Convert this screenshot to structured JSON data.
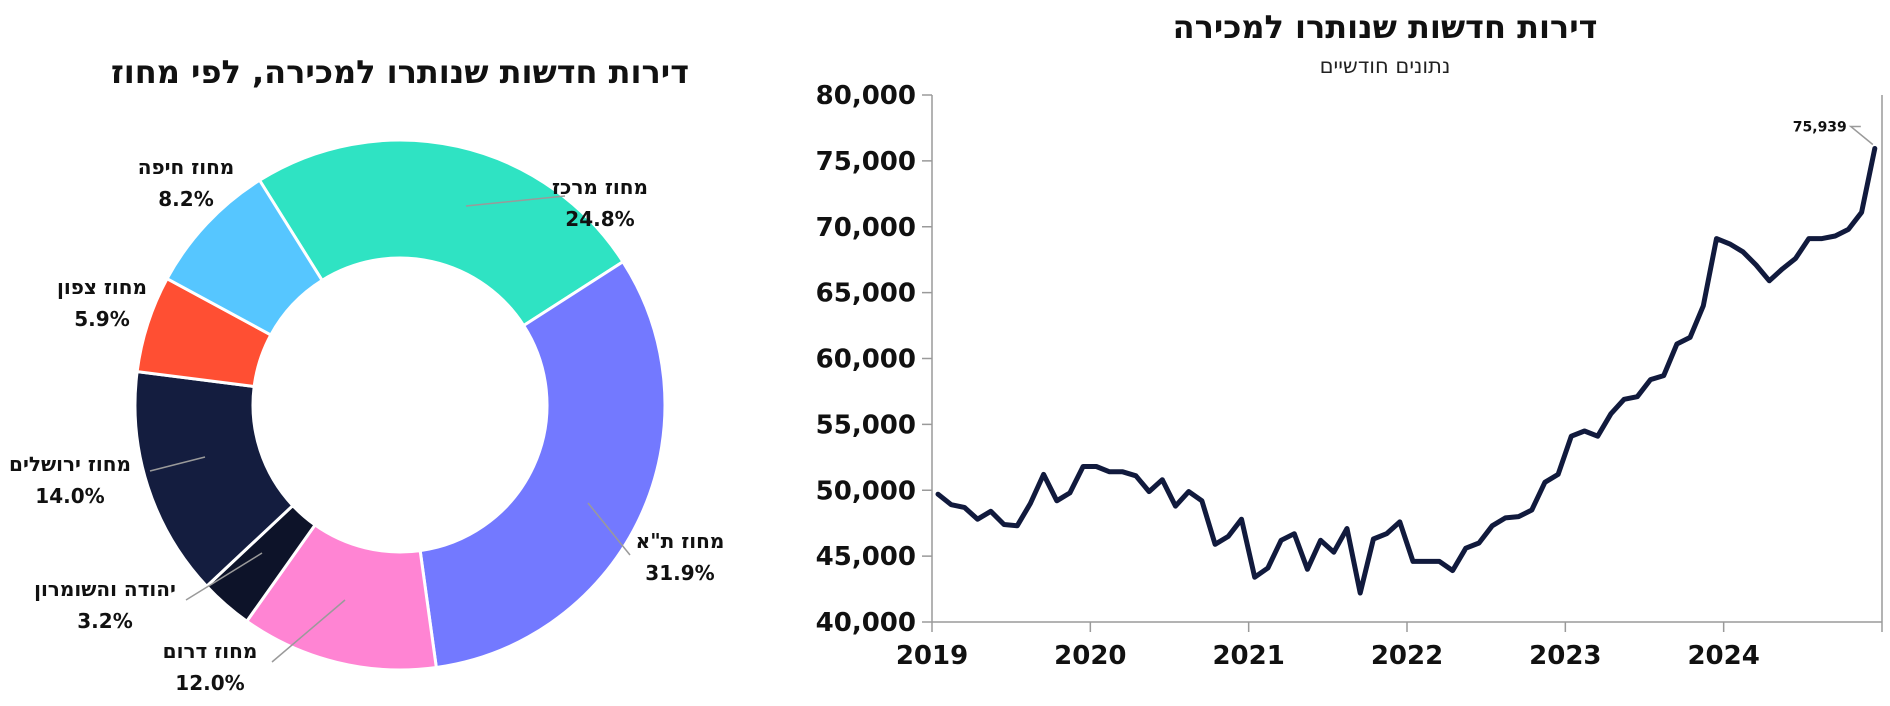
{
  "chart_data": [
    {
      "type": "pie",
      "title": "דירות חדשות שנותרו למכירה, לפי מחוז",
      "slices": [
        {
          "name": "מחוז מרכז",
          "value": 24.8,
          "label": "24.8%",
          "color": "#2fe3c3"
        },
        {
          "name": "מחוז ת\"א",
          "value": 31.9,
          "label": "31.9%",
          "color": "#7379ff"
        },
        {
          "name": "מחוז דרום",
          "value": 12.0,
          "label": "12.0%",
          "color": "#ff84d3"
        },
        {
          "name": "יהודה והשומרון",
          "value": 3.2,
          "label": "3.2%",
          "color": "#0d1329"
        },
        {
          "name": "מחוז ירושלים",
          "value": 14.0,
          "label": "14.0%",
          "color": "#141d3f"
        },
        {
          "name": "מחוז צפון",
          "value": 5.9,
          "label": "5.9%",
          "color": "#ff4f33"
        },
        {
          "name": "מחוז חיפה",
          "value": 8.2,
          "label": "8.2%",
          "color": "#56c6ff"
        }
      ]
    },
    {
      "type": "line",
      "title": "דירות חדשות שנותרו למכירה",
      "subtitle": "נתונים חודשיים",
      "x_start": "2019-01",
      "x_end": "2024-12",
      "x_ticks": [
        "2019",
        "2020",
        "2021",
        "2022",
        "2023",
        "2024"
      ],
      "ylim": [
        40000,
        80000
      ],
      "y_ticks": [
        "40,000",
        "45,000",
        "50,000",
        "55,000",
        "60,000",
        "65,000",
        "70,000",
        "75,000",
        "80,000"
      ],
      "line_color": "#111a3d",
      "annotation": {
        "text": "75,939",
        "value": 75939
      },
      "series": [
        {
          "values": [
            49700,
            48900,
            48700,
            47800,
            48400,
            47400,
            47300,
            49000,
            51200,
            49200,
            49800,
            51800,
            51800,
            51400,
            51400,
            51100,
            49900,
            50800,
            48800,
            49900,
            49200,
            45900,
            46500,
            47800,
            43400,
            44100,
            46200,
            46700,
            44000,
            46200,
            45300,
            47100,
            42200,
            46300,
            46700,
            47600,
            44600,
            44600,
            44600,
            43900,
            45600,
            46000,
            47300,
            47900,
            48000,
            48500,
            50600,
            51200,
            54100,
            54500,
            54100,
            55800,
            56900,
            57100,
            58400,
            58700,
            61100,
            61600,
            64000,
            69100,
            68700,
            68100,
            67100,
            65900,
            66800,
            67600,
            69100,
            69100,
            69300,
            69800,
            71100,
            75939
          ]
        }
      ]
    }
  ]
}
